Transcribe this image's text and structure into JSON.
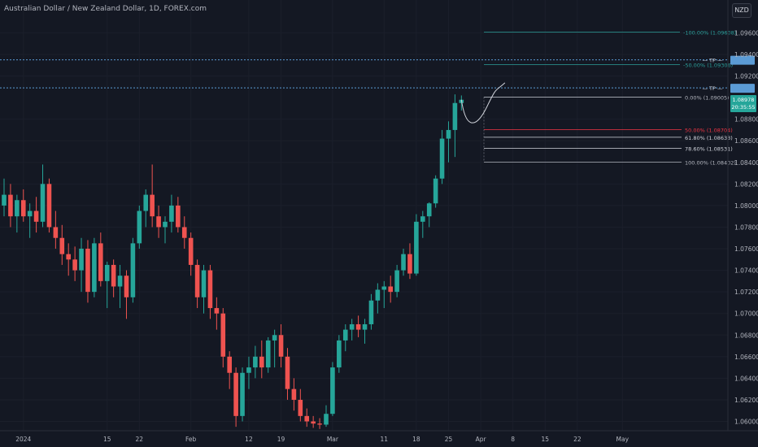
{
  "header": {
    "title": "Australian Dollar / New Zealand Dollar, 1D, FOREX.com",
    "currency": "NZD"
  },
  "colors": {
    "background": "#141823",
    "up": "#26a69a",
    "down": "#ef5350",
    "fib_text": "#b2b5be",
    "fib_red": "#f23645",
    "extension": "#2b9f9a",
    "tp_line": "#5b9bd5",
    "price_badge": "#26a69a"
  },
  "price_axis_labels": [
    "1.09600",
    "1.09400",
    "1.09200",
    "1.08800",
    "1.08600",
    "1.08400",
    "1.08200",
    "1.08000",
    "1.07800",
    "1.07600",
    "1.07400",
    "1.07200",
    "1.07000",
    "1.06800",
    "1.06600",
    "1.06400",
    "1.06200",
    "1.06000"
  ],
  "last_price": {
    "value": "1.08978",
    "countdown": "20:35:55"
  },
  "time_axis_labels": [
    {
      "label": "2024",
      "i": 3
    },
    {
      "label": "15",
      "i": 16
    },
    {
      "label": "22",
      "i": 21
    },
    {
      "label": "Feb",
      "i": 29
    },
    {
      "label": "12",
      "i": 38
    },
    {
      "label": "19",
      "i": 43
    },
    {
      "label": "Mar",
      "i": 51
    },
    {
      "label": "11",
      "i": 59
    },
    {
      "label": "18",
      "i": 64
    },
    {
      "label": "25",
      "i": 69
    },
    {
      "label": "Apr",
      "i": 74
    },
    {
      "label": "8",
      "i": 79
    },
    {
      "label": "15",
      "i": 84
    },
    {
      "label": "22",
      "i": 89
    },
    {
      "label": "May",
      "i": 96
    }
  ],
  "fib_levels": [
    {
      "label": "0.00% (1.09005)",
      "value": 1.09005,
      "color": "#b2b5be"
    },
    {
      "label": "50.00% (1.08704)",
      "value": 1.08704,
      "color": "#f23645"
    },
    {
      "label": "61.80% (1.08633)",
      "value": 1.08633,
      "color": "#d1d4dc"
    },
    {
      "label": "78.60% (1.08531)",
      "value": 1.08531,
      "color": "#d1d4dc"
    },
    {
      "label": "100.00% (1.08402)",
      "value": 1.08402,
      "color": "#b2b5be"
    }
  ],
  "fib_extensions": [
    {
      "label": "-100.00% (1.09608)",
      "value": 1.09608
    },
    {
      "label": "-50.00% (1.09306)",
      "value": 1.09306
    }
  ],
  "tp_lines": [
    {
      "label": "TP",
      "value": 1.0935
    },
    {
      "label": "TP",
      "value": 1.0909
    }
  ],
  "chart_data": {
    "type": "candlestick",
    "symbol": "AUDNZD",
    "interval": "1D",
    "ylim": [
      1.0595,
      1.0975
    ],
    "candles": [
      {
        "o": 1.08,
        "h": 1.0825,
        "l": 1.079,
        "c": 1.081
      },
      {
        "o": 1.081,
        "h": 1.082,
        "l": 1.078,
        "c": 1.079
      },
      {
        "o": 1.079,
        "h": 1.081,
        "l": 1.0775,
        "c": 1.0805
      },
      {
        "o": 1.0805,
        "h": 1.0815,
        "l": 1.0785,
        "c": 1.079
      },
      {
        "o": 1.079,
        "h": 1.0802,
        "l": 1.077,
        "c": 1.0795
      },
      {
        "o": 1.0795,
        "h": 1.0808,
        "l": 1.0775,
        "c": 1.0785
      },
      {
        "o": 1.0785,
        "h": 1.0838,
        "l": 1.078,
        "c": 1.082
      },
      {
        "o": 1.082,
        "h": 1.0825,
        "l": 1.0775,
        "c": 1.078
      },
      {
        "o": 1.078,
        "h": 1.0795,
        "l": 1.076,
        "c": 1.077
      },
      {
        "o": 1.077,
        "h": 1.0782,
        "l": 1.0745,
        "c": 1.0755
      },
      {
        "o": 1.0755,
        "h": 1.0765,
        "l": 1.0735,
        "c": 1.075
      },
      {
        "o": 1.075,
        "h": 1.0762,
        "l": 1.073,
        "c": 1.074
      },
      {
        "o": 1.074,
        "h": 1.077,
        "l": 1.072,
        "c": 1.076
      },
      {
        "o": 1.076,
        "h": 1.0768,
        "l": 1.071,
        "c": 1.072
      },
      {
        "o": 1.072,
        "h": 1.077,
        "l": 1.0715,
        "c": 1.0765
      },
      {
        "o": 1.0765,
        "h": 1.0775,
        "l": 1.0725,
        "c": 1.073
      },
      {
        "o": 1.073,
        "h": 1.0748,
        "l": 1.0705,
        "c": 1.0745
      },
      {
        "o": 1.0745,
        "h": 1.075,
        "l": 1.0715,
        "c": 1.0725
      },
      {
        "o": 1.0725,
        "h": 1.0745,
        "l": 1.0705,
        "c": 1.0735
      },
      {
        "o": 1.0735,
        "h": 1.074,
        "l": 1.0695,
        "c": 1.0715
      },
      {
        "o": 1.0715,
        "h": 1.077,
        "l": 1.071,
        "c": 1.0765
      },
      {
        "o": 1.0765,
        "h": 1.08,
        "l": 1.076,
        "c": 1.0795
      },
      {
        "o": 1.0795,
        "h": 1.0815,
        "l": 1.078,
        "c": 1.081
      },
      {
        "o": 1.081,
        "h": 1.0838,
        "l": 1.078,
        "c": 1.079
      },
      {
        "o": 1.079,
        "h": 1.08,
        "l": 1.077,
        "c": 1.078
      },
      {
        "o": 1.078,
        "h": 1.079,
        "l": 1.0765,
        "c": 1.0785
      },
      {
        "o": 1.0785,
        "h": 1.081,
        "l": 1.0775,
        "c": 1.08
      },
      {
        "o": 1.08,
        "h": 1.0808,
        "l": 1.0775,
        "c": 1.078
      },
      {
        "o": 1.078,
        "h": 1.079,
        "l": 1.076,
        "c": 1.077
      },
      {
        "o": 1.077,
        "h": 1.0775,
        "l": 1.0735,
        "c": 1.0745
      },
      {
        "o": 1.0745,
        "h": 1.075,
        "l": 1.0705,
        "c": 1.0715
      },
      {
        "o": 1.0715,
        "h": 1.0745,
        "l": 1.07,
        "c": 1.074
      },
      {
        "o": 1.074,
        "h": 1.0745,
        "l": 1.0695,
        "c": 1.0705
      },
      {
        "o": 1.0705,
        "h": 1.0715,
        "l": 1.0685,
        "c": 1.07
      },
      {
        "o": 1.07,
        "h": 1.0705,
        "l": 1.065,
        "c": 1.066
      },
      {
        "o": 1.066,
        "h": 1.0665,
        "l": 1.063,
        "c": 1.0645
      },
      {
        "o": 1.0645,
        "h": 1.065,
        "l": 1.0595,
        "c": 1.0605
      },
      {
        "o": 1.0605,
        "h": 1.065,
        "l": 1.06,
        "c": 1.0645
      },
      {
        "o": 1.0645,
        "h": 1.066,
        "l": 1.063,
        "c": 1.065
      },
      {
        "o": 1.065,
        "h": 1.067,
        "l": 1.064,
        "c": 1.066
      },
      {
        "o": 1.066,
        "h": 1.0675,
        "l": 1.064,
        "c": 1.065
      },
      {
        "o": 1.065,
        "h": 1.0678,
        "l": 1.0645,
        "c": 1.0675
      },
      {
        "o": 1.0675,
        "h": 1.0685,
        "l": 1.065,
        "c": 1.068
      },
      {
        "o": 1.068,
        "h": 1.069,
        "l": 1.065,
        "c": 1.066
      },
      {
        "o": 1.066,
        "h": 1.0668,
        "l": 1.062,
        "c": 1.063
      },
      {
        "o": 1.063,
        "h": 1.064,
        "l": 1.061,
        "c": 1.062
      },
      {
        "o": 1.062,
        "h": 1.063,
        "l": 1.06,
        "c": 1.0605
      },
      {
        "o": 1.0605,
        "h": 1.0612,
        "l": 1.0595,
        "c": 1.06
      },
      {
        "o": 1.06,
        "h": 1.0605,
        "l": 1.0594,
        "c": 1.0598
      },
      {
        "o": 1.0598,
        "h": 1.0603,
        "l": 1.0593,
        "c": 1.0597
      },
      {
        "o": 1.0597,
        "h": 1.0615,
        "l": 1.0595,
        "c": 1.0607
      },
      {
        "o": 1.0607,
        "h": 1.0655,
        "l": 1.0605,
        "c": 1.065
      },
      {
        "o": 1.065,
        "h": 1.068,
        "l": 1.0645,
        "c": 1.0675
      },
      {
        "o": 1.0675,
        "h": 1.069,
        "l": 1.0665,
        "c": 1.0685
      },
      {
        "o": 1.0685,
        "h": 1.0695,
        "l": 1.0675,
        "c": 1.069
      },
      {
        "o": 1.069,
        "h": 1.0698,
        "l": 1.0678,
        "c": 1.0685
      },
      {
        "o": 1.0685,
        "h": 1.0695,
        "l": 1.0672,
        "c": 1.069
      },
      {
        "o": 1.069,
        "h": 1.0718,
        "l": 1.0685,
        "c": 1.0712
      },
      {
        "o": 1.0712,
        "h": 1.0728,
        "l": 1.07,
        "c": 1.0722
      },
      {
        "o": 1.0722,
        "h": 1.073,
        "l": 1.0705,
        "c": 1.0725
      },
      {
        "o": 1.0725,
        "h": 1.0735,
        "l": 1.071,
        "c": 1.072
      },
      {
        "o": 1.072,
        "h": 1.0745,
        "l": 1.0715,
        "c": 1.074
      },
      {
        "o": 1.074,
        "h": 1.076,
        "l": 1.0735,
        "c": 1.0755
      },
      {
        "o": 1.0755,
        "h": 1.0765,
        "l": 1.0732,
        "c": 1.0737
      },
      {
        "o": 1.0737,
        "h": 1.0792,
        "l": 1.0735,
        "c": 1.0785
      },
      {
        "o": 1.0785,
        "h": 1.0795,
        "l": 1.077,
        "c": 1.079
      },
      {
        "o": 1.079,
        "h": 1.0803,
        "l": 1.078,
        "c": 1.0802
      },
      {
        "o": 1.0802,
        "h": 1.0828,
        "l": 1.0798,
        "c": 1.0825
      },
      {
        "o": 1.0825,
        "h": 1.087,
        "l": 1.082,
        "c": 1.0862
      },
      {
        "o": 1.0862,
        "h": 1.0878,
        "l": 1.084,
        "c": 1.087
      },
      {
        "o": 1.087,
        "h": 1.0903,
        "l": 1.0845,
        "c": 1.0895
      },
      {
        "o": 1.0895,
        "h": 1.0902,
        "l": 1.0888,
        "c": 1.0898
      }
    ],
    "projection": {
      "from_i": 71,
      "points": [
        [
          71,
          1.0898
        ],
        [
          73,
          1.0878
        ],
        [
          75,
          1.0892
        ],
        [
          77,
          1.091
        ]
      ]
    }
  }
}
